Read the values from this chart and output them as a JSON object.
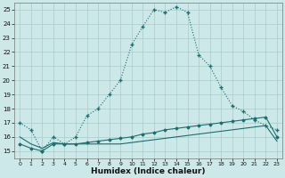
{
  "xlabel": "Humidex (Indice chaleur)",
  "background_color": "#cce8e8",
  "grid_color": "#aacccc",
  "line_color": "#1a6e6e",
  "xlim": [
    -0.5,
    23.5
  ],
  "ylim": [
    14.5,
    25.5
  ],
  "xticks": [
    0,
    1,
    2,
    3,
    4,
    5,
    6,
    7,
    8,
    9,
    10,
    11,
    12,
    13,
    14,
    15,
    16,
    17,
    18,
    19,
    20,
    21,
    22,
    23
  ],
  "yticks": [
    15,
    16,
    17,
    18,
    19,
    20,
    21,
    22,
    23,
    24,
    25
  ],
  "main_curve_x": [
    0,
    1,
    2,
    3,
    4,
    5,
    6,
    7,
    8,
    9,
    10,
    11,
    12,
    13,
    14,
    15,
    16,
    17,
    18,
    19,
    20,
    21,
    22,
    23
  ],
  "main_curve_y": [
    17.0,
    16.5,
    15.0,
    16.0,
    15.5,
    16.0,
    17.5,
    18.0,
    19.0,
    20.0,
    22.5,
    23.8,
    25.0,
    24.8,
    25.2,
    24.8,
    21.8,
    21.0,
    19.5,
    18.2,
    17.8,
    17.2,
    16.8,
    16.5
  ],
  "line2_x": [
    0,
    1,
    2,
    3,
    4,
    5,
    6,
    7,
    8,
    9,
    10,
    11,
    12,
    13,
    14,
    15,
    16,
    17,
    18,
    19,
    20,
    21,
    22,
    23
  ],
  "line2_y": [
    15.5,
    15.2,
    15.0,
    15.5,
    15.5,
    15.5,
    15.6,
    15.7,
    15.8,
    15.9,
    16.0,
    16.2,
    16.3,
    16.5,
    16.6,
    16.7,
    16.8,
    16.9,
    17.0,
    17.1,
    17.2,
    17.3,
    17.4,
    16.0
  ],
  "line3_x": [
    0,
    1,
    2,
    3,
    4,
    5,
    6,
    7,
    8,
    9,
    10,
    11,
    12,
    13,
    14,
    15,
    16,
    17,
    18,
    19,
    20,
    21,
    22,
    23
  ],
  "line3_y": [
    16.0,
    15.5,
    15.2,
    15.6,
    15.5,
    15.5,
    15.5,
    15.5,
    15.5,
    15.5,
    15.6,
    15.7,
    15.8,
    15.9,
    16.0,
    16.1,
    16.2,
    16.3,
    16.4,
    16.5,
    16.6,
    16.7,
    16.8,
    15.7
  ]
}
